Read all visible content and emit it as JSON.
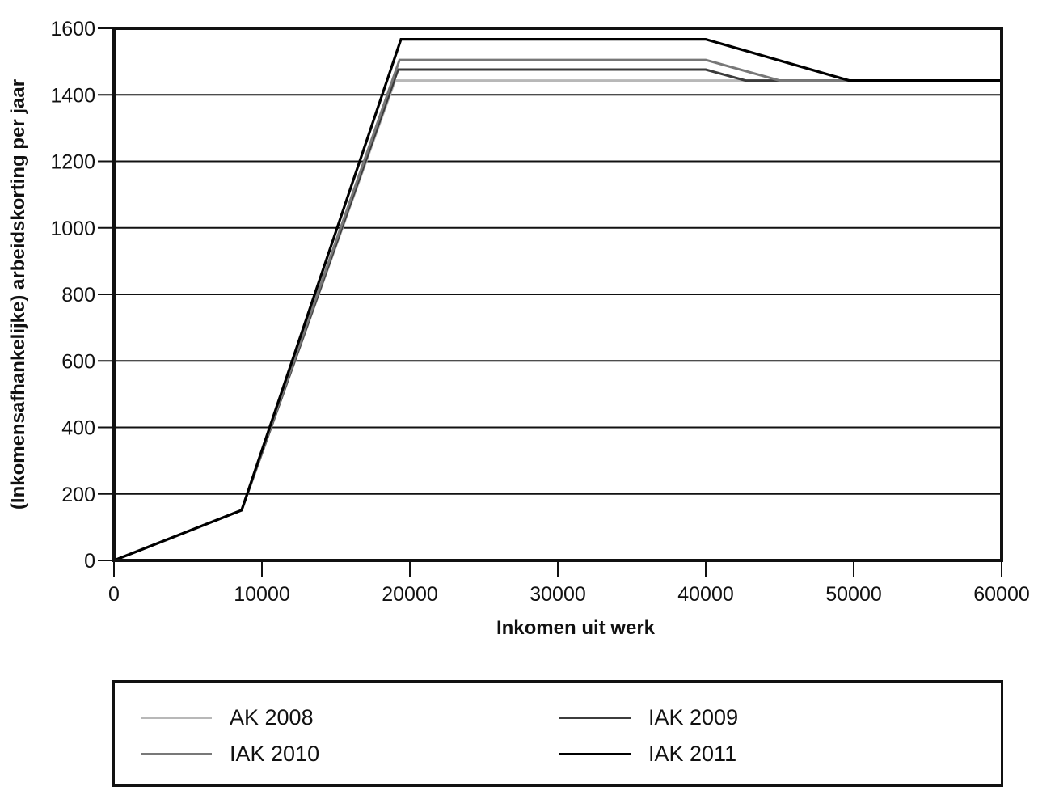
{
  "chart_data": {
    "type": "line",
    "title": "",
    "xlabel": "Inkomen uit werk",
    "ylabel": "(Inkomensafhankelijke) arbeidskorting per jaar",
    "xlim": [
      0,
      60000
    ],
    "ylim": [
      0,
      1600
    ],
    "x_ticks": [
      0,
      10000,
      20000,
      30000,
      40000,
      50000,
      60000
    ],
    "x_tick_labels": [
      "0",
      "10000",
      "20000",
      "30000",
      "40000",
      "50000",
      "60000"
    ],
    "y_ticks": [
      0,
      200,
      400,
      600,
      800,
      1000,
      1200,
      1400,
      1600
    ],
    "y_tick_labels": [
      "0",
      "200",
      "400",
      "600",
      "800",
      "1000",
      "1200",
      "1400",
      "1600"
    ],
    "grid": "horizontal",
    "legend_position": "bottom",
    "series": [
      {
        "name": "AK 2008",
        "color": "#b8b8b8",
        "width": 3,
        "points": [
          [
            0,
            0
          ],
          [
            8630,
            151
          ],
          [
            19000,
            1443
          ],
          [
            60000,
            1443
          ]
        ]
      },
      {
        "name": "IAK 2009",
        "color": "#3c3c3c",
        "width": 3,
        "points": [
          [
            0,
            0
          ],
          [
            8630,
            151
          ],
          [
            19200,
            1476
          ],
          [
            40000,
            1476
          ],
          [
            42700,
            1443
          ],
          [
            60000,
            1443
          ]
        ]
      },
      {
        "name": "IAK 2010",
        "color": "#787878",
        "width": 3,
        "points": [
          [
            0,
            0
          ],
          [
            8630,
            151
          ],
          [
            19300,
            1505
          ],
          [
            40000,
            1505
          ],
          [
            45000,
            1443
          ],
          [
            60000,
            1443
          ]
        ]
      },
      {
        "name": "IAK 2011",
        "color": "#000000",
        "width": 3.2,
        "points": [
          [
            0,
            0
          ],
          [
            8630,
            151
          ],
          [
            19400,
            1567
          ],
          [
            40000,
            1567
          ],
          [
            49700,
            1443
          ],
          [
            60000,
            1443
          ]
        ]
      }
    ]
  },
  "legend": {
    "items": [
      {
        "label": "AK 2008",
        "color": "#b8b8b8"
      },
      {
        "label": "IAK 2009",
        "color": "#3c3c3c"
      },
      {
        "label": "IAK 2010",
        "color": "#787878"
      },
      {
        "label": "IAK 2011",
        "color": "#000000"
      }
    ]
  }
}
